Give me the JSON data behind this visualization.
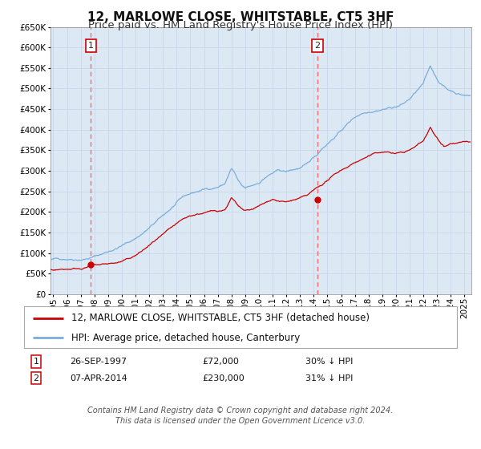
{
  "title": "12, MARLOWE CLOSE, WHITSTABLE, CT5 3HF",
  "subtitle": "Price paid vs. HM Land Registry's House Price Index (HPI)",
  "background_color": "#ffffff",
  "plot_bg_color": "#dce9f5",
  "grid_color": "#c8d8e8",
  "ylim": [
    0,
    650000
  ],
  "yticks": [
    0,
    50000,
    100000,
    150000,
    200000,
    250000,
    300000,
    350000,
    400000,
    450000,
    500000,
    550000,
    600000,
    650000
  ],
  "xlim_start": 1994.8,
  "xlim_end": 2025.5,
  "xtick_years": [
    1995,
    1996,
    1997,
    1998,
    1999,
    2000,
    2001,
    2002,
    2003,
    2004,
    2005,
    2006,
    2007,
    2008,
    2009,
    2010,
    2011,
    2012,
    2013,
    2014,
    2015,
    2016,
    2017,
    2018,
    2019,
    2020,
    2021,
    2022,
    2023,
    2024,
    2025
  ],
  "red_line_color": "#cc0000",
  "blue_line_color": "#7aaddc",
  "vline_color": "#ff6666",
  "marker_color": "#cc0000",
  "legend_label_red": "12, MARLOWE CLOSE, WHITSTABLE, CT5 3HF (detached house)",
  "legend_label_blue": "HPI: Average price, detached house, Canterbury",
  "event1_x": 1997.74,
  "event1_y": 72000,
  "event1_label": "1",
  "event1_price": 72000,
  "event1_hpi_pct": "30% ↓ HPI",
  "event1_date": "26-SEP-1997",
  "event2_x": 2014.27,
  "event2_y": 230000,
  "event2_label": "2",
  "event2_price": 230000,
  "event2_hpi_pct": "31% ↓ HPI",
  "event2_date": "07-APR-2014",
  "footer_line1": "Contains HM Land Registry data © Crown copyright and database right 2024.",
  "footer_line2": "This data is licensed under the Open Government Licence v3.0.",
  "title_fontsize": 11,
  "subtitle_fontsize": 9.5,
  "tick_fontsize": 7.5,
  "legend_fontsize": 8.5,
  "table_fontsize": 8,
  "footer_fontsize": 7
}
